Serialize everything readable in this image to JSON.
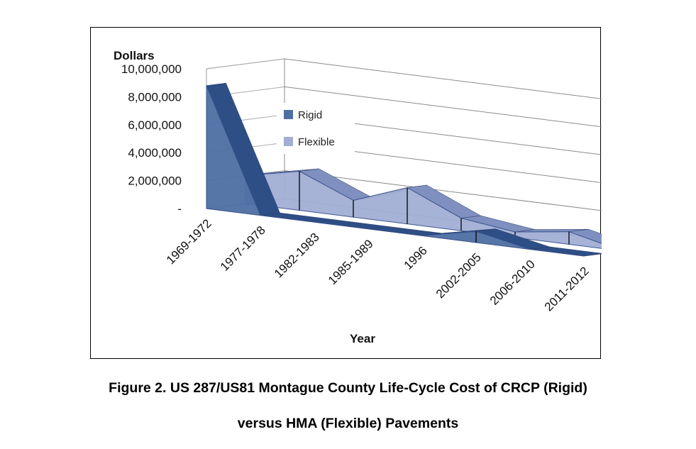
{
  "chart_data": {
    "type": "area",
    "ylabel": "Dollars",
    "xlabel": "Year",
    "ylim": [
      0,
      10000000
    ],
    "y_ticks": [
      "10,000,000",
      "8,000,000",
      "6,000,000",
      "4,000,000",
      "2,000,000",
      "-"
    ],
    "y_tick_values": [
      10000000,
      8000000,
      6000000,
      4000000,
      2000000,
      0
    ],
    "categories": [
      "1969-1972",
      "1977-1978",
      "1982-1983",
      "1985-1989",
      "1996",
      "2002-2005",
      "2006-2010",
      "2011-2012"
    ],
    "series": [
      {
        "name": "Flexible",
        "color": "#A2AED4",
        "values": [
          2000000,
          2800000,
          1200000,
          2600000,
          900000,
          400000,
          900000,
          0
        ]
      },
      {
        "name": "Rigid",
        "color": "#4E6FA3",
        "values": [
          8800000,
          0,
          0,
          0,
          0,
          800000,
          0,
          0
        ]
      }
    ],
    "legend": {
      "position": "inside-top-left",
      "entries": [
        "Rigid",
        "Flexible"
      ]
    },
    "grid": true,
    "projection": "3d"
  },
  "caption": {
    "line1": "Figure 2. US 287/US81 Montague County Life-Cycle Cost of CRCP (Rigid)",
    "line2": "versus HMA (Flexible) Pavements"
  }
}
